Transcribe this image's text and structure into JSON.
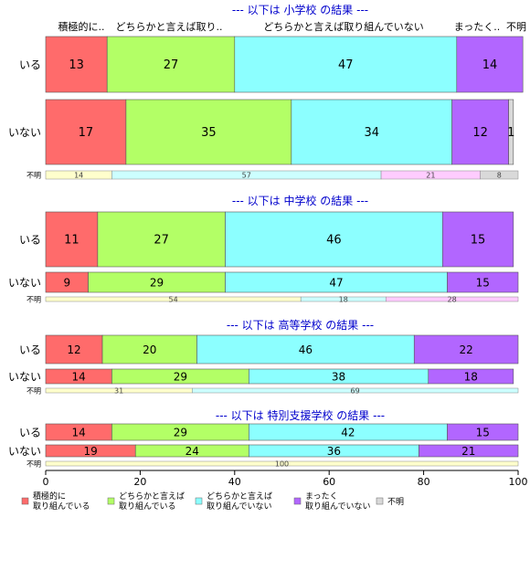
{
  "chart_data": {
    "type": "bar",
    "orientation": "horizontal",
    "stacked": true,
    "xlim": [
      0,
      100
    ],
    "xticks": [
      0,
      20,
      40,
      60,
      80,
      100
    ],
    "grid": false,
    "legend_position": "bottom",
    "categories": [
      "積極的に\n取り組んでいる",
      "どちらかと言えば\n取り組んでいる",
      "どちらかと言えば\n取り組んでいない",
      "まったく\n取り組んでいない",
      "不明"
    ],
    "colors": [
      "#FF6B6B",
      "#B3FF66",
      "#8CFFFF",
      "#B266FF",
      "#D9D9D9"
    ],
    "unknown_colors": [
      "#FFFFCC",
      "#CCFFFF",
      "#FFCCFF",
      "#D9D9D9"
    ],
    "top_header_labels": [
      "積極的に..",
      "どちらかと言えば取り..",
      "どちらかと言えば取り組んでいない",
      "まったく..",
      "不明"
    ],
    "panels": [
      {
        "title": "--- 以下は 小学校 の結果 ---",
        "rows": [
          {
            "label": "いる",
            "values": [
              13,
              27,
              47,
              14,
              0
            ]
          },
          {
            "label": "いない",
            "values": [
              17,
              35,
              34,
              12,
              1
            ]
          }
        ],
        "unknown_row": {
          "label": "不明",
          "values": [
            14,
            57,
            21,
            8
          ]
        }
      },
      {
        "title": "--- 以下は 中学校 の結果 ---",
        "rows": [
          {
            "label": "いる",
            "values": [
              11,
              27,
              46,
              15,
              0
            ]
          },
          {
            "label": "いない",
            "values": [
              9,
              29,
              47,
              15,
              0
            ]
          }
        ],
        "unknown_row": {
          "label": "不明",
          "values": [
            54,
            18,
            28
          ]
        }
      },
      {
        "title": "--- 以下は 高等学校 の結果 ---",
        "rows": [
          {
            "label": "いる",
            "values": [
              12,
              20,
              46,
              22,
              0
            ]
          },
          {
            "label": "いない",
            "values": [
              14,
              29,
              38,
              18,
              0
            ]
          }
        ],
        "unknown_row": {
          "label": "不明",
          "values": [
            31,
            69
          ]
        }
      },
      {
        "title": "--- 以下は 特別支援学校 の結果 ---",
        "rows": [
          {
            "label": "いる",
            "values": [
              14,
              29,
              42,
              15,
              0
            ]
          },
          {
            "label": "いない",
            "values": [
              19,
              24,
              36,
              21,
              0
            ]
          }
        ],
        "unknown_row": {
          "label": "不明",
          "values": [
            100
          ]
        }
      }
    ]
  }
}
